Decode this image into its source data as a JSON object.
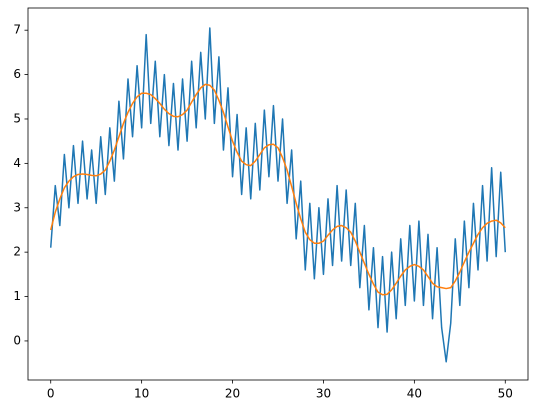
{
  "chart_data": {
    "type": "line",
    "x": [
      0,
      0.5,
      1,
      1.5,
      2,
      2.5,
      3,
      3.5,
      4,
      4.5,
      5,
      5.5,
      6,
      6.5,
      7,
      7.5,
      8,
      8.5,
      9,
      9.5,
      10,
      10.5,
      11,
      11.5,
      12,
      12.5,
      13,
      13.5,
      14,
      14.5,
      15,
      15.5,
      16,
      16.5,
      17,
      17.5,
      18,
      18.5,
      19,
      19.5,
      20,
      20.5,
      21,
      21.5,
      22,
      22.5,
      23,
      23.5,
      24,
      24.5,
      25,
      25.5,
      26,
      26.5,
      27,
      27.5,
      28,
      28.5,
      29,
      29.5,
      30,
      30.5,
      31,
      31.5,
      32,
      32.5,
      33,
      33.5,
      34,
      34.5,
      35,
      35.5,
      36,
      36.5,
      37,
      37.5,
      38,
      38.5,
      39,
      39.5,
      40,
      40.5,
      41,
      41.5,
      42,
      42.5,
      43,
      43.5,
      44,
      44.5,
      45,
      45.5,
      46,
      46.5,
      47,
      47.5,
      48,
      48.5,
      49,
      49.5,
      50
    ],
    "series": [
      {
        "color": "#1f77b4",
        "values": [
          2.1,
          3.5,
          2.6,
          4.2,
          3.0,
          4.4,
          3.1,
          4.5,
          3.2,
          4.3,
          3.1,
          4.6,
          3.3,
          4.8,
          3.6,
          5.4,
          4.1,
          5.9,
          4.6,
          6.2,
          4.8,
          6.9,
          4.9,
          6.3,
          4.6,
          6.0,
          4.4,
          5.8,
          4.3,
          5.9,
          4.5,
          6.3,
          4.8,
          6.5,
          5.0,
          7.05,
          4.9,
          6.4,
          4.3,
          5.7,
          3.7,
          5.1,
          3.3,
          4.8,
          3.2,
          4.9,
          3.4,
          5.2,
          3.7,
          5.3,
          3.6,
          5.0,
          3.1,
          4.3,
          2.3,
          3.6,
          1.6,
          3.1,
          1.4,
          3.0,
          1.5,
          3.2,
          1.7,
          3.5,
          1.8,
          3.4,
          1.7,
          3.1,
          1.2,
          2.6,
          0.7,
          2.1,
          0.3,
          1.9,
          0.2,
          2.0,
          0.5,
          2.3,
          0.8,
          2.6,
          0.9,
          2.7,
          0.8,
          2.4,
          0.5,
          2.1,
          0.3,
          -0.47,
          0.4,
          2.3,
          0.8,
          2.7,
          1.2,
          3.1,
          1.6,
          3.5,
          1.8,
          3.9,
          1.9,
          3.8,
          2.0
        ]
      },
      {
        "color": "#ff7f0e",
        "values": [
          2.5,
          2.9,
          3.2,
          3.45,
          3.6,
          3.7,
          3.75,
          3.76,
          3.75,
          3.73,
          3.72,
          3.76,
          3.85,
          4.05,
          4.3,
          4.6,
          4.9,
          5.15,
          5.35,
          5.5,
          5.58,
          5.58,
          5.55,
          5.46,
          5.35,
          5.22,
          5.12,
          5.06,
          5.05,
          5.1,
          5.2,
          5.38,
          5.55,
          5.7,
          5.78,
          5.76,
          5.65,
          5.42,
          5.15,
          4.82,
          4.5,
          4.25,
          4.05,
          3.97,
          3.95,
          4.05,
          4.2,
          4.35,
          4.42,
          4.43,
          4.35,
          4.13,
          3.85,
          3.48,
          3.1,
          2.75,
          2.45,
          2.28,
          2.2,
          2.2,
          2.25,
          2.38,
          2.5,
          2.58,
          2.6,
          2.55,
          2.45,
          2.25,
          2.0,
          1.75,
          1.5,
          1.28,
          1.1,
          1.04,
          1.05,
          1.15,
          1.3,
          1.46,
          1.6,
          1.68,
          1.72,
          1.68,
          1.6,
          1.45,
          1.3,
          1.22,
          1.2,
          1.18,
          1.2,
          1.35,
          1.55,
          1.78,
          2.0,
          2.2,
          2.4,
          2.55,
          2.65,
          2.7,
          2.72,
          2.66,
          2.55
        ]
      }
    ],
    "xlim": [
      -2.5,
      52.5
    ],
    "xticks": [
      0,
      10,
      20,
      30,
      40,
      50
    ],
    "ylim": [
      -0.88,
      7.5
    ],
    "yticks": [
      0,
      1,
      2,
      3,
      4,
      5,
      6,
      7
    ]
  }
}
